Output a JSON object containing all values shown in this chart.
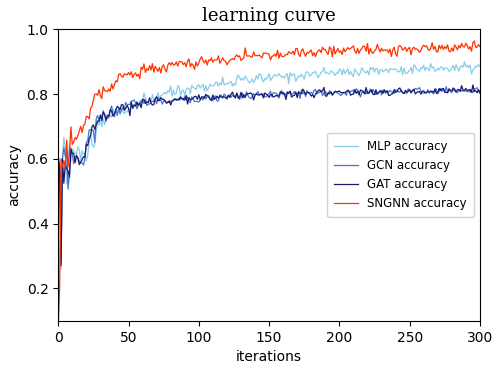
{
  "title": "learning curve",
  "xlabel": "iterations",
  "ylabel": "accuracy",
  "ylim": [
    0.1,
    1.0
  ],
  "xlim": [
    0,
    300
  ],
  "yticks": [
    0.2,
    0.4,
    0.6,
    0.8,
    1.0
  ],
  "xticks": [
    0,
    50,
    100,
    150,
    200,
    250,
    300
  ],
  "series": {
    "MLP": {
      "color": "#87CEEB",
      "label": "MLP accuracy"
    },
    "GCN": {
      "color": "#4477CC",
      "label": "GCN accuracy"
    },
    "GAT": {
      "color": "#191970",
      "label": "GAT accuracy"
    },
    "SNGNN": {
      "color": "#FF3300",
      "label": "SNGNN accuracy"
    }
  },
  "legend_loc": "center right",
  "figsize": [
    5.0,
    3.71
  ],
  "dpi": 100
}
